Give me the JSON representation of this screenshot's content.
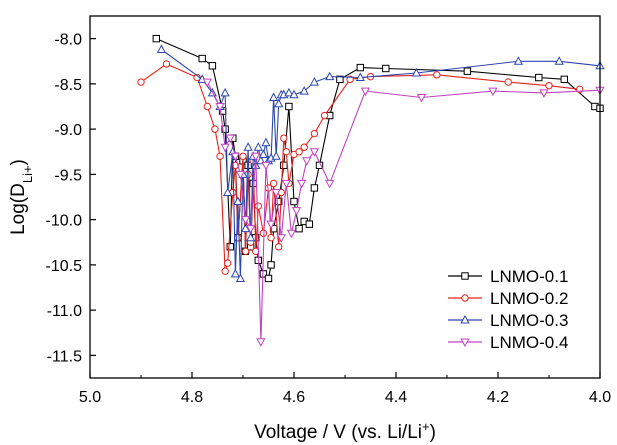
{
  "chart_data": {
    "type": "line",
    "xlabel": "Voltage / V (vs. Li/Li+)",
    "ylabel": "Log(DLi+)",
    "xlim": [
      5.0,
      4.0
    ],
    "ylim": [
      -11.75,
      -7.75
    ],
    "x_ticks": [
      "5.0",
      "4.8",
      "4.6",
      "4.4",
      "4.2",
      "4.0"
    ],
    "y_ticks": [
      "-8.0",
      "-8.5",
      "-9.0",
      "-9.5",
      "-10.0",
      "-10.5",
      "-11.0",
      "-11.5"
    ],
    "grid": false,
    "legend_position": "bottom-right",
    "series": [
      {
        "name": "LNMO-0.1",
        "color": "#000000",
        "marker": "square",
        "x": [
          4.87,
          4.78,
          4.76,
          4.74,
          4.735,
          4.725,
          4.72,
          4.715,
          4.71,
          4.7,
          4.695,
          4.69,
          4.685,
          4.68,
          4.675,
          4.67,
          4.66,
          4.65,
          4.645,
          4.64,
          4.63,
          4.62,
          4.61,
          4.6,
          4.59,
          4.58,
          4.57,
          4.56,
          4.55,
          4.53,
          4.51,
          4.47,
          4.42,
          4.26,
          4.12,
          4.07,
          4.01,
          4.0
        ],
        "y": [
          -8.0,
          -8.22,
          -8.3,
          -8.8,
          -9.0,
          -10.3,
          -9.1,
          -9.3,
          -10.2,
          -9.35,
          -10.35,
          -9.4,
          -10.3,
          -9.6,
          -10.2,
          -10.45,
          -10.6,
          -10.65,
          -10.5,
          -10.1,
          -9.8,
          -9.4,
          -8.75,
          -9.8,
          -10.1,
          -10.02,
          -10.05,
          -9.65,
          -9.4,
          -8.85,
          -8.45,
          -8.32,
          -8.33,
          -8.36,
          -8.43,
          -8.45,
          -8.75,
          -8.77
        ]
      },
      {
        "name": "LNMO-0.2",
        "color": "#e8221a",
        "marker": "circle",
        "x": [
          4.9,
          4.85,
          4.79,
          4.77,
          4.755,
          4.745,
          4.735,
          4.73,
          4.72,
          4.715,
          4.71,
          4.7,
          4.695,
          4.69,
          4.685,
          4.68,
          4.675,
          4.67,
          4.66,
          4.65,
          4.645,
          4.64,
          4.63,
          4.625,
          4.62,
          4.615,
          4.61,
          4.6,
          4.59,
          4.58,
          4.56,
          4.54,
          4.49,
          4.45,
          4.32,
          4.18,
          4.1,
          4.04
        ],
        "y": [
          -8.48,
          -8.28,
          -8.43,
          -8.75,
          -9.0,
          -9.3,
          -10.57,
          -10.48,
          -9.7,
          -9.4,
          -10.2,
          -9.3,
          -10.35,
          -9.5,
          -10.25,
          -9.35,
          -10.35,
          -9.85,
          -10.15,
          -9.65,
          -10.2,
          -9.6,
          -10.3,
          -9.7,
          -9.1,
          -9.25,
          -9.6,
          -9.28,
          -9.25,
          -9.2,
          -9.05,
          -8.85,
          -8.45,
          -8.42,
          -8.4,
          -8.48,
          -8.52,
          -8.56
        ]
      },
      {
        "name": "LNMO-0.3",
        "color": "#2c48b0",
        "marker": "triangle-up",
        "x": [
          4.86,
          4.78,
          4.76,
          4.745,
          4.735,
          4.73,
          4.72,
          4.715,
          4.71,
          4.705,
          4.7,
          4.695,
          4.69,
          4.685,
          4.68,
          4.675,
          4.67,
          4.665,
          4.66,
          4.655,
          4.65,
          4.645,
          4.64,
          4.635,
          4.63,
          4.625,
          4.62,
          4.61,
          4.6,
          4.58,
          4.56,
          4.53,
          4.47,
          4.36,
          4.16,
          4.08,
          4.0
        ],
        "y": [
          -8.12,
          -8.45,
          -8.6,
          -8.75,
          -8.6,
          -9.7,
          -9.25,
          -10.6,
          -9.8,
          -10.65,
          -9.5,
          -10.1,
          -9.2,
          -10.2,
          -9.3,
          -9.4,
          -9.2,
          -9.35,
          -9.28,
          -9.15,
          -9.35,
          -9.32,
          -8.65,
          -9.3,
          -8.72,
          -8.62,
          -8.62,
          -8.6,
          -8.62,
          -8.58,
          -8.48,
          -8.42,
          -8.43,
          -8.38,
          -8.25,
          -8.25,
          -8.3
        ]
      },
      {
        "name": "LNMO-0.4",
        "color": "#c043c0",
        "marker": "triangle-down",
        "x": [
          4.77,
          4.745,
          4.735,
          4.725,
          4.715,
          4.705,
          4.695,
          4.685,
          4.675,
          4.665,
          4.655,
          4.645,
          4.635,
          4.625,
          4.615,
          4.605,
          4.595,
          4.585,
          4.575,
          4.56,
          4.53,
          4.46,
          4.35,
          4.21,
          4.11,
          4.0
        ],
        "y": [
          -8.48,
          -8.75,
          -9.2,
          -9.1,
          -9.3,
          -9.5,
          -10.0,
          -10.1,
          -9.3,
          -11.35,
          -9.4,
          -10.05,
          -9.7,
          -10.2,
          -9.6,
          -10.15,
          -9.9,
          -9.6,
          -9.35,
          -9.25,
          -9.6,
          -8.58,
          -8.65,
          -8.58,
          -8.6,
          -8.57
        ]
      }
    ]
  }
}
